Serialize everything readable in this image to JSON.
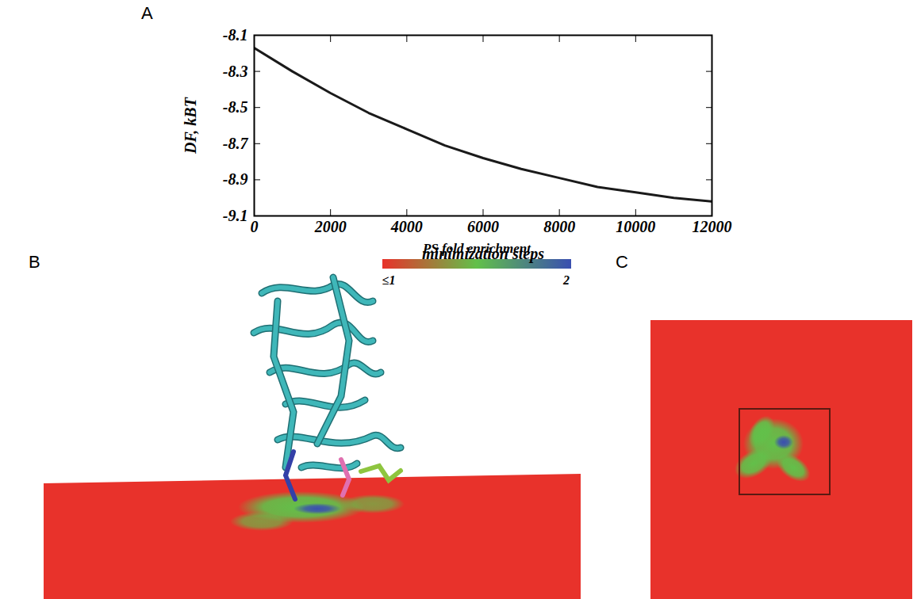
{
  "chart_data": {
    "type": "line",
    "letter": "A",
    "x": [
      0,
      1000,
      2000,
      3000,
      4000,
      5000,
      6000,
      7000,
      8000,
      9000,
      10000,
      11000,
      12000
    ],
    "values": [
      -8.17,
      -8.3,
      -8.42,
      -8.53,
      -8.62,
      -8.71,
      -8.78,
      -8.84,
      -8.89,
      -8.94,
      -8.97,
      -9.0,
      -9.02
    ],
    "color": "#1a1a1a",
    "xlabel": "minimization steps",
    "ylabel": "DF, kBT",
    "xlim": [
      0,
      12000
    ],
    "ylim": [
      -9.1,
      -8.1
    ],
    "xticks": [
      0,
      2000,
      4000,
      6000,
      8000,
      10000,
      12000
    ],
    "yticks": [
      -9.1,
      -8.9,
      -8.7,
      -8.5,
      -8.3,
      -8.1
    ]
  },
  "panels": [
    {
      "letter": "B",
      "colorbar": {
        "label": "PS fold enrichment",
        "range": [
          1,
          2
        ],
        "ticks": [
          {
            "value": 1,
            "label": "≤1"
          },
          2
        ],
        "colors": [
          "#e8322b",
          "#62c04a",
          "#3a4fb0"
        ]
      }
    },
    {
      "letter": "C"
    }
  ]
}
